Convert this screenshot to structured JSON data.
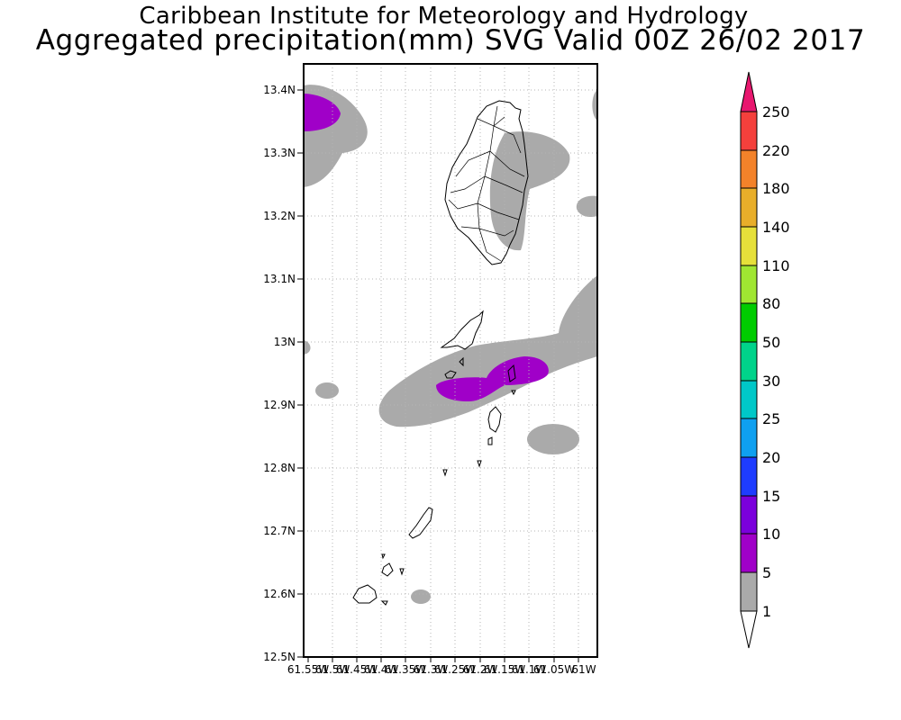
{
  "title": "Caribbean Institute for Meteorology and Hydrology",
  "subtitle": "Aggregated precipitation(mm) SVG Valid 00Z 26/02 2017",
  "map": {
    "lat_range": [
      12.5,
      13.44
    ],
    "lon_range": [
      -61.56,
      -61.0
    ],
    "lat_ticks": [
      "13.4N",
      "13.3N",
      "13.2N",
      "13.1N",
      "13N",
      "12.9N",
      "12.8N",
      "12.7N",
      "12.6N",
      "12.5N"
    ],
    "lon_ticks": [
      "61.55W",
      "61.5W",
      "61.45W",
      "61.4W",
      "61.35W",
      "61.3W",
      "61.25W",
      "61.2W",
      "61.15W",
      "61.1W",
      "61.05W",
      "61W"
    ]
  },
  "legend": {
    "levels": [
      "250",
      "220",
      "180",
      "140",
      "110",
      "80",
      "50",
      "30",
      "25",
      "20",
      "15",
      "10",
      "5",
      "1"
    ],
    "colors": {
      "above_250": "#e8176f",
      "220_250": "#f4403c",
      "180_220": "#f3822a",
      "140_180": "#e8ae2a",
      "110_140": "#e6e03a",
      "80_110": "#a0e632",
      "50_80": "#00cc00",
      "30_50": "#00d38a",
      "25_30": "#00c8c8",
      "20_25": "#0fa0f0",
      "15_20": "#1e3cff",
      "10_15": "#7b00dc",
      "5_10": "#a000c8",
      "1_5": "#aaaaaa",
      "below_1": "#ffffff"
    }
  }
}
